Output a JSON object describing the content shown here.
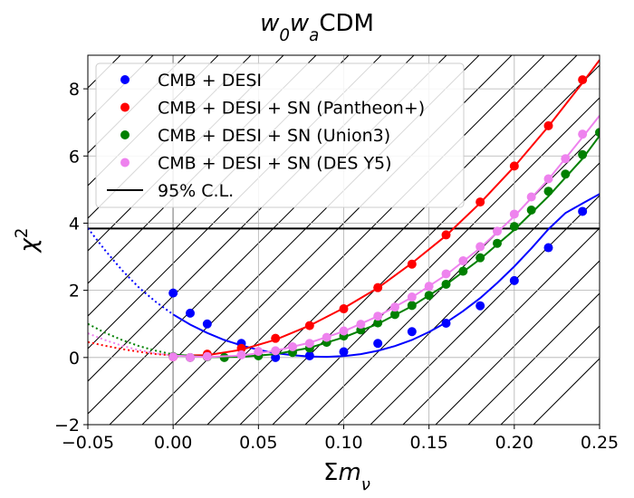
{
  "chart_data": {
    "type": "scatter",
    "title_parts": [
      {
        "text": "w",
        "style": "italic"
      },
      {
        "text": "0",
        "style": "sub-italic"
      },
      {
        "text": "w",
        "style": "italic"
      },
      {
        "text": "a",
        "style": "sub-italic"
      },
      {
        "text": "CDM",
        "style": "normal"
      }
    ],
    "xlabel_parts": [
      {
        "text": "Σ",
        "style": "normal"
      },
      {
        "text": "m",
        "style": "italic"
      },
      {
        "text": "ν",
        "style": "sub-italic"
      }
    ],
    "ylabel_parts": [
      {
        "text": "χ",
        "style": "italic"
      },
      {
        "text": "2",
        "style": "sup"
      }
    ],
    "xlim": [
      -0.05,
      0.25
    ],
    "ylim": [
      -2,
      9
    ],
    "xticks": [
      -0.05,
      0.0,
      0.05,
      0.1,
      0.15,
      0.2,
      0.25
    ],
    "xtick_labels": [
      "−0.05",
      "0.00",
      "0.05",
      "0.10",
      "0.15",
      "0.20",
      "0.25"
    ],
    "yticks": [
      -2,
      0,
      2,
      4,
      6,
      8
    ],
    "ytick_labels": [
      "−2",
      "0",
      "2",
      "4",
      "6",
      "8"
    ],
    "grid": true,
    "legend_position": "upper-left",
    "excluded_region": {
      "x": [
        -0.05,
        0.0
      ],
      "pattern": "hatched"
    },
    "threshold": {
      "label": " 95% C.L.",
      "y": 3.84,
      "color": "#000000"
    },
    "series": [
      {
        "name": "CMB + DESI",
        "color": "#0000ff",
        "points": [
          [
            0.0,
            1.92
          ],
          [
            0.01,
            1.32
          ],
          [
            0.02,
            1.0
          ],
          [
            0.04,
            0.42
          ],
          [
            0.06,
            0.0
          ],
          [
            0.08,
            0.05
          ],
          [
            0.1,
            0.17
          ],
          [
            0.12,
            0.42
          ],
          [
            0.14,
            0.77
          ],
          [
            0.16,
            1.02
          ],
          [
            0.18,
            1.54
          ],
          [
            0.2,
            2.29
          ],
          [
            0.22,
            3.27
          ],
          [
            0.24,
            4.35
          ]
        ],
        "curve": [
          [
            -0.05,
            3.85
          ],
          [
            -0.04,
            3.2
          ],
          [
            -0.03,
            2.6
          ],
          [
            -0.02,
            2.08
          ],
          [
            -0.01,
            1.65
          ],
          [
            0.0,
            1.28
          ],
          [
            0.01,
            0.98
          ],
          [
            0.02,
            0.73
          ],
          [
            0.03,
            0.52
          ],
          [
            0.04,
            0.36
          ],
          [
            0.05,
            0.23
          ],
          [
            0.06,
            0.13
          ],
          [
            0.07,
            0.07
          ],
          [
            0.08,
            0.03
          ],
          [
            0.09,
            0.02
          ],
          [
            0.1,
            0.04
          ],
          [
            0.11,
            0.1
          ],
          [
            0.12,
            0.2
          ],
          [
            0.13,
            0.34
          ],
          [
            0.14,
            0.52
          ],
          [
            0.15,
            0.76
          ],
          [
            0.16,
            1.04
          ],
          [
            0.17,
            1.38
          ],
          [
            0.18,
            1.77
          ],
          [
            0.19,
            2.22
          ],
          [
            0.2,
            2.71
          ],
          [
            0.21,
            3.25
          ],
          [
            0.22,
            3.82
          ],
          [
            0.23,
            4.3
          ],
          [
            0.24,
            4.59
          ],
          [
            0.25,
            4.87
          ]
        ]
      },
      {
        "name": "CMB + DESI + SN (Pantheon+)",
        "color": "#ff0000",
        "points": [
          [
            0.0,
            0.02
          ],
          [
            0.02,
            0.1
          ],
          [
            0.04,
            0.27
          ],
          [
            0.06,
            0.57
          ],
          [
            0.08,
            0.95
          ],
          [
            0.1,
            1.45
          ],
          [
            0.12,
            2.08
          ],
          [
            0.14,
            2.78
          ],
          [
            0.16,
            3.65
          ],
          [
            0.18,
            4.63
          ],
          [
            0.2,
            5.7
          ],
          [
            0.22,
            6.9
          ],
          [
            0.24,
            8.27
          ]
        ],
        "curve": [
          [
            -0.05,
            0.46
          ],
          [
            -0.04,
            0.35
          ],
          [
            -0.03,
            0.25
          ],
          [
            -0.02,
            0.17
          ],
          [
            -0.01,
            0.1
          ],
          [
            0.0,
            0.06
          ],
          [
            0.02,
            0.07
          ],
          [
            0.04,
            0.23
          ],
          [
            0.06,
            0.53
          ],
          [
            0.08,
            0.95
          ],
          [
            0.1,
            1.47
          ],
          [
            0.12,
            2.07
          ],
          [
            0.14,
            2.81
          ],
          [
            0.16,
            3.63
          ],
          [
            0.18,
            4.6
          ],
          [
            0.2,
            5.68
          ],
          [
            0.22,
            6.88
          ],
          [
            0.24,
            8.18
          ],
          [
            0.25,
            8.86
          ]
        ]
      },
      {
        "name": "CMB + DESI + SN (Union3)",
        "color": "#008000",
        "points": [
          [
            0.0,
            0.03
          ],
          [
            0.01,
            0.0
          ],
          [
            0.02,
            0.02
          ],
          [
            0.03,
            0.0
          ],
          [
            0.05,
            0.05
          ],
          [
            0.07,
            0.15
          ],
          [
            0.08,
            0.28
          ],
          [
            0.09,
            0.45
          ],
          [
            0.1,
            0.64
          ],
          [
            0.11,
            0.82
          ],
          [
            0.12,
            1.03
          ],
          [
            0.13,
            1.28
          ],
          [
            0.14,
            1.55
          ],
          [
            0.15,
            1.85
          ],
          [
            0.16,
            2.18
          ],
          [
            0.17,
            2.57
          ],
          [
            0.18,
            2.97
          ],
          [
            0.19,
            3.4
          ],
          [
            0.2,
            3.9
          ],
          [
            0.21,
            4.39
          ],
          [
            0.22,
            4.95
          ],
          [
            0.23,
            5.46
          ],
          [
            0.24,
            6.04
          ],
          [
            0.25,
            6.7
          ]
        ],
        "curve": [
          [
            -0.05,
            1.0
          ],
          [
            -0.04,
            0.74
          ],
          [
            -0.03,
            0.52
          ],
          [
            -0.02,
            0.34
          ],
          [
            -0.01,
            0.2
          ],
          [
            0.0,
            0.09
          ],
          [
            0.02,
            0.01
          ],
          [
            0.04,
            0.02
          ],
          [
            0.06,
            0.1
          ],
          [
            0.08,
            0.29
          ],
          [
            0.1,
            0.6
          ],
          [
            0.12,
            1.0
          ],
          [
            0.14,
            1.53
          ],
          [
            0.16,
            2.17
          ],
          [
            0.18,
            2.93
          ],
          [
            0.2,
            3.8
          ],
          [
            0.22,
            4.8
          ],
          [
            0.24,
            5.92
          ],
          [
            0.25,
            6.6
          ]
        ]
      },
      {
        "name": "CMB + DESI + SN (DES Y5)",
        "color": "#ee82ee",
        "points": [
          [
            0.0,
            0.02
          ],
          [
            0.01,
            0.0
          ],
          [
            0.02,
            0.03
          ],
          [
            0.04,
            0.08
          ],
          [
            0.05,
            0.18
          ],
          [
            0.06,
            0.2
          ],
          [
            0.07,
            0.32
          ],
          [
            0.08,
            0.42
          ],
          [
            0.09,
            0.6
          ],
          [
            0.1,
            0.79
          ],
          [
            0.11,
            0.99
          ],
          [
            0.12,
            1.23
          ],
          [
            0.13,
            1.5
          ],
          [
            0.14,
            1.8
          ],
          [
            0.15,
            2.12
          ],
          [
            0.16,
            2.49
          ],
          [
            0.17,
            2.88
          ],
          [
            0.18,
            3.3
          ],
          [
            0.19,
            3.76
          ],
          [
            0.2,
            4.27
          ],
          [
            0.21,
            4.78
          ],
          [
            0.22,
            5.32
          ],
          [
            0.23,
            5.92
          ],
          [
            0.24,
            6.65
          ]
        ],
        "curve": [
          [
            -0.05,
            0.72
          ],
          [
            -0.04,
            0.52
          ],
          [
            -0.03,
            0.35
          ],
          [
            -0.02,
            0.22
          ],
          [
            -0.01,
            0.12
          ],
          [
            0.0,
            0.06
          ],
          [
            0.02,
            0.01
          ],
          [
            0.04,
            0.06
          ],
          [
            0.06,
            0.2
          ],
          [
            0.08,
            0.44
          ],
          [
            0.1,
            0.78
          ],
          [
            0.12,
            1.23
          ],
          [
            0.14,
            1.79
          ],
          [
            0.16,
            2.46
          ],
          [
            0.18,
            3.26
          ],
          [
            0.2,
            4.2
          ],
          [
            0.22,
            5.3
          ],
          [
            0.24,
            6.56
          ],
          [
            0.25,
            7.2
          ]
        ]
      }
    ]
  }
}
